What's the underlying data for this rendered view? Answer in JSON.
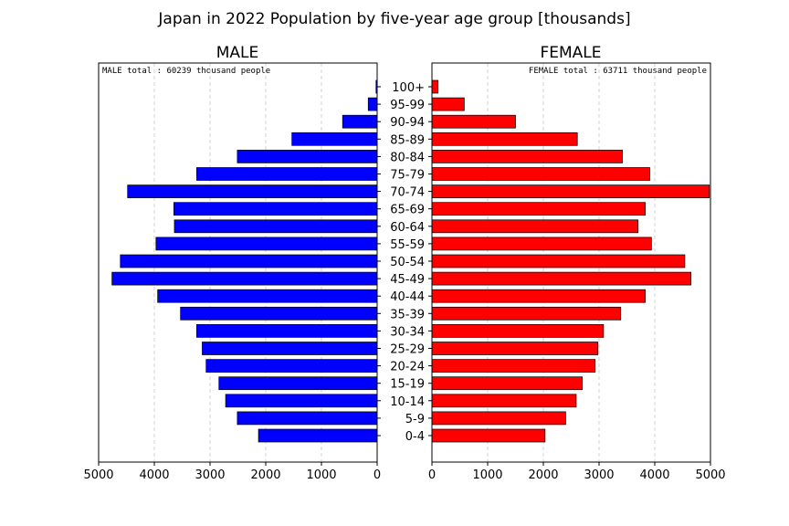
{
  "chart_data": {
    "type": "bar",
    "orientation": "horizontal-pyramid",
    "title": "Japan in 2022   Population by five-year age group [thousands]",
    "categories": [
      "0-4",
      "5-9",
      "10-14",
      "15-19",
      "20-24",
      "25-29",
      "30-34",
      "35-39",
      "40-44",
      "45-49",
      "50-54",
      "55-59",
      "60-64",
      "65-69",
      "70-74",
      "75-79",
      "80-84",
      "85-89",
      "90-94",
      "95-99",
      "100+"
    ],
    "xlim": [
      0,
      5000
    ],
    "xticks": [
      "0",
      "1000",
      "2000",
      "3000",
      "4000",
      "5000"
    ],
    "grid": "x-dashed",
    "series": [
      {
        "name": "MALE",
        "side": "left",
        "color": "#0000ff",
        "annotation": "MALE total : 60239 thousand people",
        "values": [
          2130,
          2510,
          2720,
          2840,
          3070,
          3140,
          3240,
          3530,
          3940,
          4760,
          4610,
          3970,
          3640,
          3650,
          4480,
          3240,
          2510,
          1530,
          620,
          160,
          20
        ]
      },
      {
        "name": "FEMALE",
        "side": "right",
        "color": "#ff0000",
        "annotation": "FEMALE total : 63711 thousand people",
        "values": [
          2030,
          2400,
          2590,
          2700,
          2930,
          2980,
          3080,
          3390,
          3830,
          4650,
          4540,
          3940,
          3700,
          3830,
          4980,
          3910,
          3420,
          2610,
          1500,
          580,
          110
        ]
      }
    ]
  }
}
